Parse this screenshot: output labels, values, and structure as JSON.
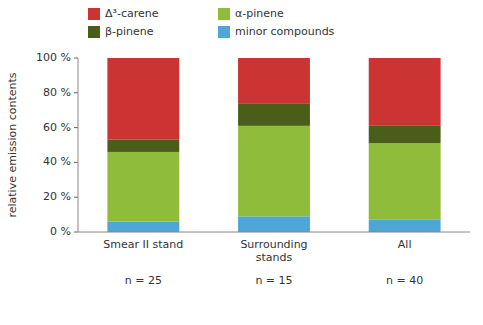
{
  "chart_data": {
    "type": "bar",
    "stacked": true,
    "categories": [
      "Smear II stand",
      "Surrounding\nstands",
      "All"
    ],
    "series": [
      {
        "name": "minor compounds",
        "color": "#4da6d6",
        "values": [
          6,
          9,
          7
        ]
      },
      {
        "name": "α-pinene",
        "color": "#8fbc3b",
        "values": [
          40,
          52,
          44
        ]
      },
      {
        "name": "β-pinene",
        "color": "#4a5e1a",
        "values": [
          7,
          13,
          10
        ]
      },
      {
        "name": "Δ³-carene",
        "color": "#cc3333",
        "values": [
          47,
          26,
          39
        ]
      }
    ],
    "y_label": "relative emission contents",
    "ylim": [
      0,
      100
    ],
    "yticks": [
      {
        "value": 0,
        "label": "0 %"
      },
      {
        "value": 20,
        "label": "20 %"
      },
      {
        "value": 40,
        "label": "40 %"
      },
      {
        "value": 60,
        "label": "60 %"
      },
      {
        "value": 80,
        "label": "80 %"
      },
      {
        "value": 100,
        "label": "100 %"
      }
    ],
    "annotations": [
      "n = 25",
      "n = 15",
      "n = 40"
    ],
    "legend": "upper left",
    "grid": false
  }
}
